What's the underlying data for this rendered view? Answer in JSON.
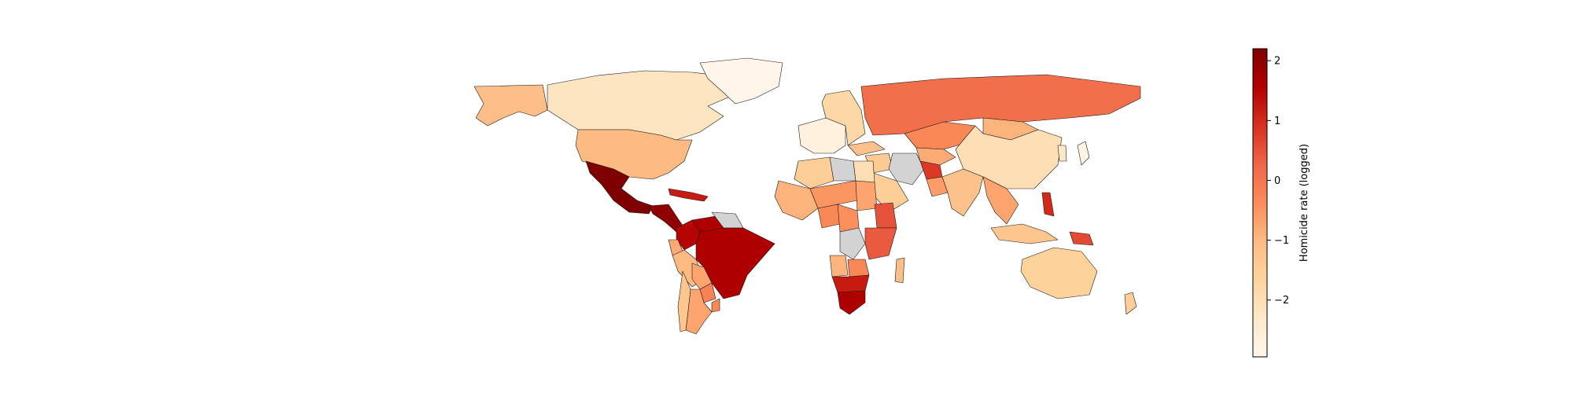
{
  "map": {
    "projection": "equirectangular",
    "nodata_color": "#d3d3d3",
    "regions": [
      {
        "name": "Canada",
        "value": -2.2
      },
      {
        "name": "Alaska",
        "value": -1.1
      },
      {
        "name": "Greenland",
        "value": -2.9
      },
      {
        "name": "United States",
        "value": -1.0
      },
      {
        "name": "Mexico",
        "value": 2.2
      },
      {
        "name": "Central America",
        "value": 2.0
      },
      {
        "name": "Caribbean",
        "value": 1.2
      },
      {
        "name": "Venezuela",
        "value": 1.6
      },
      {
        "name": "Guianas",
        "value": null
      },
      {
        "name": "Colombia",
        "value": 1.5
      },
      {
        "name": "Ecuador",
        "value": -0.8
      },
      {
        "name": "Peru",
        "value": -1.0
      },
      {
        "name": "Bolivia",
        "value": -0.7
      },
      {
        "name": "Brazil",
        "value": 1.6
      },
      {
        "name": "Paraguay",
        "value": -0.2
      },
      {
        "name": "Argentina",
        "value": -0.7
      },
      {
        "name": "Chile",
        "value": -1.3
      },
      {
        "name": "Uruguay",
        "value": -0.3
      },
      {
        "name": "Western Europe",
        "value": -2.7
      },
      {
        "name": "Eastern Europe",
        "value": -1.8
      },
      {
        "name": "Russia",
        "value": 0.1
      },
      {
        "name": "Kazakhstan",
        "value": -0.3
      },
      {
        "name": "Central Asia",
        "value": -0.8
      },
      {
        "name": "Mongolia",
        "value": -0.9
      },
      {
        "name": "China",
        "value": -2.0
      },
      {
        "name": "Japan",
        "value": -2.8
      },
      {
        "name": "Korea",
        "value": -2.3
      },
      {
        "name": "Turkey",
        "value": -1.2
      },
      {
        "name": "Middle East",
        "value": -1.4
      },
      {
        "name": "Saudi Arabia",
        "value": -1.5
      },
      {
        "name": "Iran",
        "value": null
      },
      {
        "name": "Afghanistan",
        "value": 0.8
      },
      {
        "name": "Pakistan",
        "value": -0.6
      },
      {
        "name": "India",
        "value": -1.2
      },
      {
        "name": "Southeast Asia",
        "value": -0.7
      },
      {
        "name": "Philippines",
        "value": 1.0
      },
      {
        "name": "Indonesia",
        "value": -1.3
      },
      {
        "name": "Papua New Guinea",
        "value": 0.6
      },
      {
        "name": "Australia",
        "value": -1.6
      },
      {
        "name": "New Zealand",
        "value": -1.5
      },
      {
        "name": "Algeria",
        "value": -1.5
      },
      {
        "name": "Libya",
        "value": null
      },
      {
        "name": "Egypt",
        "value": -2.0
      },
      {
        "name": "West Africa",
        "value": -0.9
      },
      {
        "name": "Sahel",
        "value": -0.5
      },
      {
        "name": "Nigeria",
        "value": -0.3
      },
      {
        "name": "Sudan",
        "value": -0.7
      },
      {
        "name": "Ethiopia",
        "value": 0.5
      },
      {
        "name": "Central Africa",
        "value": -0.4
      },
      {
        "name": "DR Congo",
        "value": null
      },
      {
        "name": "East Africa",
        "value": 0.4
      },
      {
        "name": "Angola",
        "value": -0.9
      },
      {
        "name": "Zambia",
        "value": -0.3
      },
      {
        "name": "Southern Africa",
        "value": 1.2
      },
      {
        "name": "South Africa",
        "value": 1.6
      },
      {
        "name": "Madagascar",
        "value": -1.1
      }
    ]
  },
  "colorbar": {
    "label": "Homicide rate (logged)",
    "vmin": -2.95,
    "vmax": 2.2,
    "ticks": [
      2,
      1,
      0,
      -1,
      -2
    ],
    "tick_labels": [
      "2",
      "1",
      "0",
      "−1",
      "−2"
    ],
    "colormap": "OrRd",
    "stops": [
      "#fff7ec",
      "#fee8c8",
      "#fdd49e",
      "#fdbb84",
      "#fc8d59",
      "#ef6548",
      "#d7301f",
      "#b30000",
      "#7f0000"
    ]
  }
}
